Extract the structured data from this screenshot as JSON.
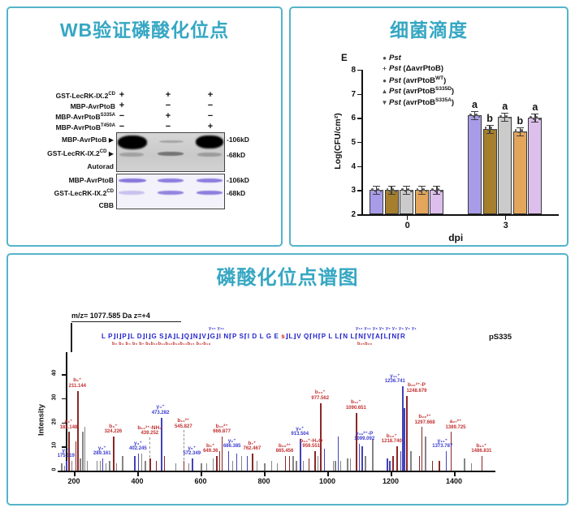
{
  "accent": {
    "teal_title": "#36a7c3",
    "panel_border": "#54b4c9"
  },
  "wb": {
    "title": "WB验证磷酸化位点",
    "arrow_glyph": "▶",
    "conditions": [
      {
        "label": "GST-LecRK-IX.2",
        "sup": "CD",
        "signs": [
          "+",
          "+",
          "+"
        ]
      },
      {
        "label": "MBP-AvrPtoB",
        "sup": "",
        "signs": [
          "+",
          "−",
          "−"
        ]
      },
      {
        "label": "MBP-AvrPtoB",
        "sup": "S335A",
        "signs": [
          "−",
          "+",
          "−"
        ]
      },
      {
        "label": "MBP-AvrPtoB",
        "sup": "T450A",
        "signs": [
          "−",
          "−",
          "+"
        ]
      }
    ],
    "autorad": {
      "caption": "Autorad",
      "row1": {
        "label": "MBP-AvrPtoB",
        "sup": "",
        "marker": "-106kD"
      },
      "row2": {
        "label": "GST-LecRK-IX.2",
        "sup": "CD",
        "marker": "-68kD"
      }
    },
    "cbb": {
      "caption": "CBB",
      "row1": {
        "label": "MBP-AvrPtoB",
        "sup": "",
        "marker": "-106kD"
      },
      "row2": {
        "label": "GST-LecRK-IX.2",
        "sup": "CD",
        "marker": "-68kD"
      }
    }
  },
  "titer": {
    "title": "细菌滴度",
    "panel_letter": "E",
    "legend": [
      {
        "marker": "●",
        "parts": [
          [
            "Pst",
            "i"
          ]
        ]
      },
      {
        "marker": "+",
        "parts": [
          [
            "Pst",
            "i"
          ],
          [
            " (ΔavrPtoB)",
            ""
          ]
        ]
      },
      {
        "marker": "●",
        "parts": [
          [
            "Pst",
            "i"
          ],
          [
            " (avrPtoB",
            ""
          ],
          [
            "WT",
            "s"
          ],
          [
            ")",
            ""
          ]
        ]
      },
      {
        "marker": "▲",
        "parts": [
          [
            "Pst",
            "i"
          ],
          [
            " (avrPtoB",
            ""
          ],
          [
            "S335D",
            "s"
          ],
          [
            ")",
            ""
          ]
        ]
      },
      {
        "marker": "▼",
        "parts": [
          [
            "Pst",
            "i"
          ],
          [
            " (avrPtoB",
            ""
          ],
          [
            "S335A",
            "s"
          ],
          [
            ")",
            ""
          ]
        ]
      }
    ]
  },
  "spectrum": {
    "title": "磷酸化位点谱图",
    "precursor": "m/z= 1077.585 Da  z=+4",
    "ps_label": "pS335",
    "sequence": {
      "before_s": "L P⌋I⌋P⌋L D⌋I⌋G S⌋A⌋L⌋Q⌋N⌋V⌋G⌋I N⌈P S⌈I D L G E ",
      "s": "s",
      "after_s": "⌋L⌋V Q⌈H⌈P L L⌈N L⌈N⌈V⌈A⌈L⌈N⌈R",
      "y_row_left": "y₂₀   y₂₁",
      "y_row_right": "y₁₂ y₁₁        y₈        y₆ y₅ y₄ y₃ y₂ y₁",
      "b_row_left": "b₂ b₃ b₄    b₆ b₇    b₉b₁₀b₁₁b₁₂b₁₃b₁₄b₁₅  b₁₇b₁₈",
      "b_row_right": "b₂₅b₂₆"
    }
  },
  "chart_data": [
    {
      "id": "bacterial_titer",
      "type": "bar",
      "title": "细菌滴度",
      "categories": [
        "0",
        "3"
      ],
      "xlabel": "dpi",
      "ylabel": "Log(CFU/cm²)",
      "ylim": [
        2,
        8
      ],
      "yticks": [
        2,
        3,
        4,
        5,
        6,
        7,
        8
      ],
      "series": [
        {
          "name": "Pst",
          "color": "#a89ce8",
          "values": [
            3.0,
            6.1
          ],
          "letters": [
            "",
            "a"
          ]
        },
        {
          "name": "Pst (ΔavrPtoB)",
          "color": "#a57e2e",
          "values": [
            3.0,
            5.55
          ],
          "letters": [
            "",
            "b"
          ]
        },
        {
          "name": "Pst (avrPtoBWT)",
          "color": "#cbcbcb",
          "values": [
            3.0,
            6.05
          ],
          "letters": [
            "",
            "a"
          ]
        },
        {
          "name": "Pst (avrPtoBS335D)",
          "color": "#e3a65c",
          "values": [
            3.0,
            5.45
          ],
          "letters": [
            "",
            "b"
          ]
        },
        {
          "name": "Pst (avrPtoBS335A)",
          "color": "#dcbfec",
          "values": [
            3.0,
            6.0
          ],
          "letters": [
            "",
            "a"
          ]
        }
      ],
      "errors": [
        0.08,
        0.12
      ],
      "legend_position": "top-left-inside"
    },
    {
      "id": "ms2_spectrum",
      "type": "line",
      "title": "磷酸化位点谱图",
      "xlabel_ticks": [
        200,
        400,
        600,
        800,
        1000,
        1200,
        1400
      ],
      "xlim": [
        150,
        1520
      ],
      "ylabel": "Intensity",
      "ylim": [
        0,
        40
      ],
      "yticks": [
        0,
        10,
        20,
        30,
        40
      ],
      "peak_colors": {
        "b": "#8b2727",
        "y": "#4343bb",
        "g": "#858585"
      },
      "peaks": [
        {
          "mz": 160,
          "i": 3,
          "type": "g"
        },
        {
          "mz": 168,
          "i": 2,
          "type": "g"
        },
        {
          "mz": 175.119,
          "i": 4,
          "type": "y",
          "label": "y₁⁺",
          "value": "175.119"
        },
        {
          "mz": 183.148,
          "i": 16,
          "type": "b",
          "label": "a₂⁺",
          "value": "183.148"
        },
        {
          "mz": 192,
          "i": 4,
          "type": "g"
        },
        {
          "mz": 204,
          "i": 12,
          "type": "b"
        },
        {
          "mz": 211.144,
          "i": 33,
          "type": "b",
          "label": "b₂⁺",
          "value": "211.144"
        },
        {
          "mz": 219,
          "i": 5,
          "type": "g"
        },
        {
          "mz": 226,
          "i": 16,
          "type": "g"
        },
        {
          "mz": 233,
          "i": 18,
          "type": "g"
        },
        {
          "mz": 241,
          "i": 4,
          "type": "g"
        },
        {
          "mz": 272,
          "i": 4,
          "type": "g"
        },
        {
          "mz": 281,
          "i": 4,
          "type": "g"
        },
        {
          "mz": 289.161,
          "i": 5,
          "type": "y",
          "label": "y₂⁺",
          "value": "289.161"
        },
        {
          "mz": 299,
          "i": 3,
          "type": "g"
        },
        {
          "mz": 311,
          "i": 4,
          "type": "g"
        },
        {
          "mz": 324.226,
          "i": 14,
          "type": "b",
          "label": "b₃⁺",
          "value": "324.226"
        },
        {
          "mz": 333,
          "i": 3,
          "type": "g"
        },
        {
          "mz": 352,
          "i": 6,
          "type": "g"
        },
        {
          "mz": 391,
          "i": 6,
          "type": "y"
        },
        {
          "mz": 402.245,
          "i": 7,
          "type": "y",
          "label": "y₃⁺",
          "value": "402.245"
        },
        {
          "mz": 413,
          "i": 7,
          "type": "g"
        },
        {
          "mz": 424,
          "i": 4,
          "type": "g"
        },
        {
          "mz": 439.252,
          "i": 5,
          "type": "b",
          "label": "b₁₀³⁺-NH₃",
          "value": "439.252",
          "ly": 14
        },
        {
          "mz": 458,
          "i": 4,
          "type": "b"
        },
        {
          "mz": 473.282,
          "i": 22,
          "type": "y",
          "label": "y₄⁺",
          "value": "473.282"
        },
        {
          "mz": 484,
          "i": 6,
          "type": "b"
        },
        {
          "mz": 520,
          "i": 3,
          "type": "g"
        },
        {
          "mz": 545.827,
          "i": 4,
          "type": "b",
          "label": "b₁₁²⁺",
          "value": "545.827",
          "ly": 17
        },
        {
          "mz": 561,
          "i": 3,
          "type": "g"
        },
        {
          "mz": 572.349,
          "i": 5,
          "type": "y",
          "label": "y₅⁺",
          "value": "572.349"
        },
        {
          "mz": 601,
          "i": 3,
          "type": "g"
        },
        {
          "mz": 617,
          "i": 3,
          "type": "g"
        },
        {
          "mz": 638,
          "i": 5,
          "type": "g"
        },
        {
          "mz": 649.36,
          "i": 6,
          "type": "b",
          "label": "b₅⁺",
          "value": "649.36",
          "dx": -7
        },
        {
          "mz": 659,
          "i": 8,
          "type": "b"
        },
        {
          "mz": 666.877,
          "i": 14,
          "type": "b",
          "label": "b₁₀²⁺",
          "value": "666.877"
        },
        {
          "mz": 686.385,
          "i": 8,
          "type": "y",
          "label": "y₆⁺",
          "value": "686.385",
          "dx": 5
        },
        {
          "mz": 700,
          "i": 4,
          "type": "g"
        },
        {
          "mz": 712,
          "i": 7,
          "type": "y"
        },
        {
          "mz": 727,
          "i": 6,
          "type": "g"
        },
        {
          "mz": 746,
          "i": 6,
          "type": "y"
        },
        {
          "mz": 762.467,
          "i": 7,
          "type": "b",
          "label": "b₇⁺",
          "value": "762.467"
        },
        {
          "mz": 776,
          "i": 4,
          "type": "g"
        },
        {
          "mz": 801,
          "i": 3,
          "type": "g"
        },
        {
          "mz": 823,
          "i": 4,
          "type": "g"
        },
        {
          "mz": 841,
          "i": 3,
          "type": "g"
        },
        {
          "mz": 865.456,
          "i": 6,
          "type": "b",
          "label": "b₂₆³⁺",
          "value": "865.456"
        },
        {
          "mz": 879,
          "i": 6,
          "type": "b"
        },
        {
          "mz": 891,
          "i": 6,
          "type": "g"
        },
        {
          "mz": 901,
          "i": 4,
          "type": "g"
        },
        {
          "mz": 913.504,
          "i": 13,
          "type": "y",
          "label": "y₈⁺",
          "value": "913.504"
        },
        {
          "mz": 923,
          "i": 4,
          "type": "g"
        },
        {
          "mz": 941,
          "i": 5,
          "type": "b"
        },
        {
          "mz": 959.551,
          "i": 8,
          "type": "b",
          "label": "b₁₀⁺-H₂O",
          "value": "959.551",
          "dx": -4
        },
        {
          "mz": 968,
          "i": 6,
          "type": "g"
        },
        {
          "mz": 977.562,
          "i": 28,
          "type": "b",
          "label": "b₁₀⁺",
          "value": "977.562"
        },
        {
          "mz": 990,
          "i": 9,
          "type": "y"
        },
        {
          "mz": 1018,
          "i": 4,
          "type": "g"
        },
        {
          "mz": 1024,
          "i": 4,
          "type": "g"
        },
        {
          "mz": 1033,
          "i": 14,
          "type": "y"
        },
        {
          "mz": 1041,
          "i": 4,
          "type": "g"
        },
        {
          "mz": 1062,
          "i": 5,
          "type": "g"
        },
        {
          "mz": 1072,
          "i": 5,
          "type": "g"
        },
        {
          "mz": 1090.651,
          "i": 24,
          "type": "b",
          "label": "b₁₁⁺",
          "value": "1090.651"
        },
        {
          "mz": 1099.092,
          "i": 11,
          "type": "y",
          "label": "y₁₉²⁺-P",
          "value": "1099.092",
          "dx": 7
        },
        {
          "mz": 1108,
          "i": 10,
          "type": "y"
        },
        {
          "mz": 1119,
          "i": 6,
          "type": "g"
        },
        {
          "mz": 1142,
          "i": 13,
          "type": "g"
        },
        {
          "mz": 1188,
          "i": 5,
          "type": "y"
        },
        {
          "mz": 1196,
          "i": 4,
          "type": "y"
        },
        {
          "mz": 1206,
          "i": 6,
          "type": "b"
        },
        {
          "mz": 1218.74,
          "i": 10,
          "type": "b",
          "label": "b₁₂⁺",
          "value": "1218.740",
          "dx": -6
        },
        {
          "mz": 1230,
          "i": 8,
          "type": "y"
        },
        {
          "mz": 1236.741,
          "i": 35,
          "type": "y",
          "label": "y₁₁⁺",
          "value": "1236.741",
          "dx": -9
        },
        {
          "mz": 1242,
          "i": 26,
          "type": "y"
        },
        {
          "mz": 1248.679,
          "i": 31,
          "type": "b",
          "label": "b₂₆²⁺-P",
          "value": "1248.679",
          "dx": 13
        },
        {
          "mz": 1262,
          "i": 8,
          "type": "g"
        },
        {
          "mz": 1290,
          "i": 6,
          "type": "b"
        },
        {
          "mz": 1297.668,
          "i": 18,
          "type": "b",
          "label": "b₂₈²⁺",
          "value": "1297.668",
          "dx": 4
        },
        {
          "mz": 1308,
          "i": 14,
          "type": "g"
        },
        {
          "mz": 1331,
          "i": 4,
          "type": "b"
        },
        {
          "mz": 1352,
          "i": 4,
          "type": "b"
        },
        {
          "mz": 1373.787,
          "i": 8,
          "type": "y",
          "label": "y₁₂⁺",
          "value": "1373.787",
          "dx": -4
        },
        {
          "mz": 1389.725,
          "i": 16,
          "type": "b",
          "label": "a₂₇²⁺",
          "value": "1389.725",
          "dx": 6
        },
        {
          "mz": 1432,
          "i": 5,
          "type": "g"
        },
        {
          "mz": 1453,
          "i": 3,
          "type": "g"
        },
        {
          "mz": 1486.831,
          "i": 6,
          "type": "b",
          "label": "b₁₅⁺",
          "value": "1486.831"
        }
      ]
    }
  ]
}
